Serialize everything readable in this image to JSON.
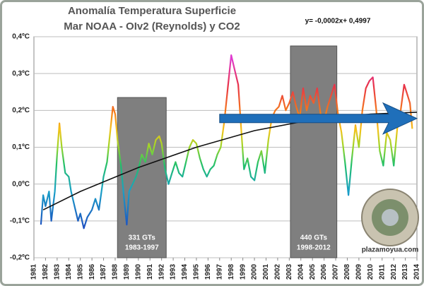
{
  "chart_data": {
    "type": "line",
    "title": [
      "Anomalía Temperatura Superficie",
      "Mar NOAA - OIv2 (Reynolds) y CO2"
    ],
    "x": [
      1981.6,
      1981.8,
      1982.0,
      1982.3,
      1982.5,
      1982.8,
      1983.0,
      1983.2,
      1983.4,
      1983.7,
      1984.0,
      1984.2,
      1984.5,
      1984.8,
      1985.0,
      1985.3,
      1985.6,
      1986.0,
      1986.3,
      1986.6,
      1987.0,
      1987.3,
      1987.6,
      1987.8,
      1988.0,
      1988.2,
      1988.5,
      1988.8,
      1989.0,
      1989.2,
      1989.5,
      1989.8,
      1990.0,
      1990.3,
      1990.6,
      1990.9,
      1991.2,
      1991.5,
      1991.8,
      1992.0,
      1992.3,
      1992.6,
      1992.9,
      1993.2,
      1993.5,
      1993.8,
      1994.1,
      1994.4,
      1994.7,
      1995.0,
      1995.3,
      1995.6,
      1995.9,
      1996.2,
      1996.5,
      1996.8,
      1997.1,
      1997.4,
      1997.7,
      1998.0,
      1998.3,
      1998.6,
      1998.9,
      1999.1,
      1999.4,
      1999.7,
      2000.0,
      2000.3,
      2000.6,
      2000.9,
      2001.2,
      2001.5,
      2001.8,
      2002.1,
      2002.4,
      2002.7,
      2003.0,
      2003.3,
      2003.6,
      2003.9,
      2004.2,
      2004.5,
      2004.8,
      2005.1,
      2005.4,
      2005.7,
      2006.0,
      2006.3,
      2006.6,
      2006.9,
      2007.2,
      2007.5,
      2007.8,
      2008.1,
      2008.4,
      2008.7,
      2009.0,
      2009.3,
      2009.6,
      2009.9,
      2010.2,
      2010.5,
      2010.8,
      2011.1,
      2011.4,
      2011.7,
      2012.0,
      2012.3,
      2012.6,
      2012.9,
      2013.2,
      2013.4,
      2013.6
    ],
    "values": [
      -0.11,
      -0.03,
      -0.06,
      -0.02,
      -0.1,
      -0.02,
      0.08,
      0.165,
      0.1,
      0.03,
      0.02,
      -0.02,
      -0.06,
      -0.1,
      -0.08,
      -0.12,
      -0.09,
      -0.07,
      -0.04,
      -0.07,
      0.02,
      0.06,
      0.15,
      0.21,
      0.19,
      0.12,
      0.05,
      -0.05,
      -0.11,
      -0.02,
      0.0,
      0.02,
      0.04,
      0.08,
      0.06,
      0.11,
      0.08,
      0.12,
      0.13,
      0.11,
      0.04,
      0.0,
      0.03,
      0.06,
      0.03,
      0.02,
      0.06,
      0.1,
      0.12,
      0.11,
      0.07,
      0.04,
      0.02,
      0.04,
      0.05,
      0.08,
      0.1,
      0.17,
      0.26,
      0.35,
      0.31,
      0.27,
      0.13,
      0.04,
      0.07,
      0.02,
      0.01,
      0.06,
      0.09,
      0.03,
      0.12,
      0.18,
      0.2,
      0.21,
      0.24,
      0.2,
      0.22,
      0.25,
      0.21,
      0.18,
      0.26,
      0.2,
      0.24,
      0.22,
      0.26,
      0.19,
      0.17,
      0.21,
      0.24,
      0.27,
      0.19,
      0.14,
      0.06,
      -0.03,
      0.07,
      0.16,
      0.1,
      0.2,
      0.26,
      0.28,
      0.29,
      0.2,
      0.09,
      0.05,
      0.14,
      0.12,
      0.05,
      0.15,
      0.2,
      0.27,
      0.24,
      0.22,
      0.15
    ],
    "color_scale": "rainbow",
    "xlim": [
      1981,
      2014
    ],
    "xticks": [
      1981,
      1982,
      1983,
      1984,
      1985,
      1986,
      1987,
      1988,
      1989,
      1990,
      1991,
      1992,
      1993,
      1994,
      1995,
      1996,
      1997,
      1998,
      1999,
      2000,
      2001,
      2002,
      2003,
      2004,
      2005,
      2006,
      2007,
      2008,
      2009,
      2010,
      2011,
      2012,
      2013,
      2014
    ],
    "ylim": [
      -0.2,
      0.4
    ],
    "yticks": [
      {
        "value": -0.2,
        "label": "-0,2ºC"
      },
      {
        "value": -0.1,
        "label": "-0,1ºC"
      },
      {
        "value": 0.0,
        "label": "0,0ºC"
      },
      {
        "value": 0.1,
        "label": "0,1ºC"
      },
      {
        "value": 0.2,
        "label": "0,2ºC"
      },
      {
        "value": 0.3,
        "label": "0,3ºC"
      },
      {
        "value": 0.4,
        "label": "0,4ºC"
      }
    ],
    "grid": true,
    "trend": {
      "equation": "y= -0,0002x+ 0,4997",
      "color": "#111111",
      "x": [
        1981.8,
        1985,
        1990,
        1995,
        2000,
        2005,
        2010,
        2014
      ],
      "values": [
        -0.07,
        -0.02,
        0.045,
        0.1,
        0.145,
        0.175,
        0.19,
        0.195
      ]
    },
    "regions": [
      {
        "x": [
          1988.2,
          1992.4
        ],
        "top": 0.235,
        "label": [
          "331 GTs",
          "1983-1997"
        ],
        "color": "#7f7f7f"
      },
      {
        "x": [
          2003.1,
          2007.1
        ],
        "top": 0.375,
        "label": [
          "440 GTs",
          "1998-2012"
        ],
        "color": "#7f7f7f"
      }
    ],
    "arrow": {
      "x": [
        1997,
        2014
      ],
      "y": 0.178,
      "color": "#1f6fba"
    },
    "watermark": "plazamoyua.com"
  }
}
